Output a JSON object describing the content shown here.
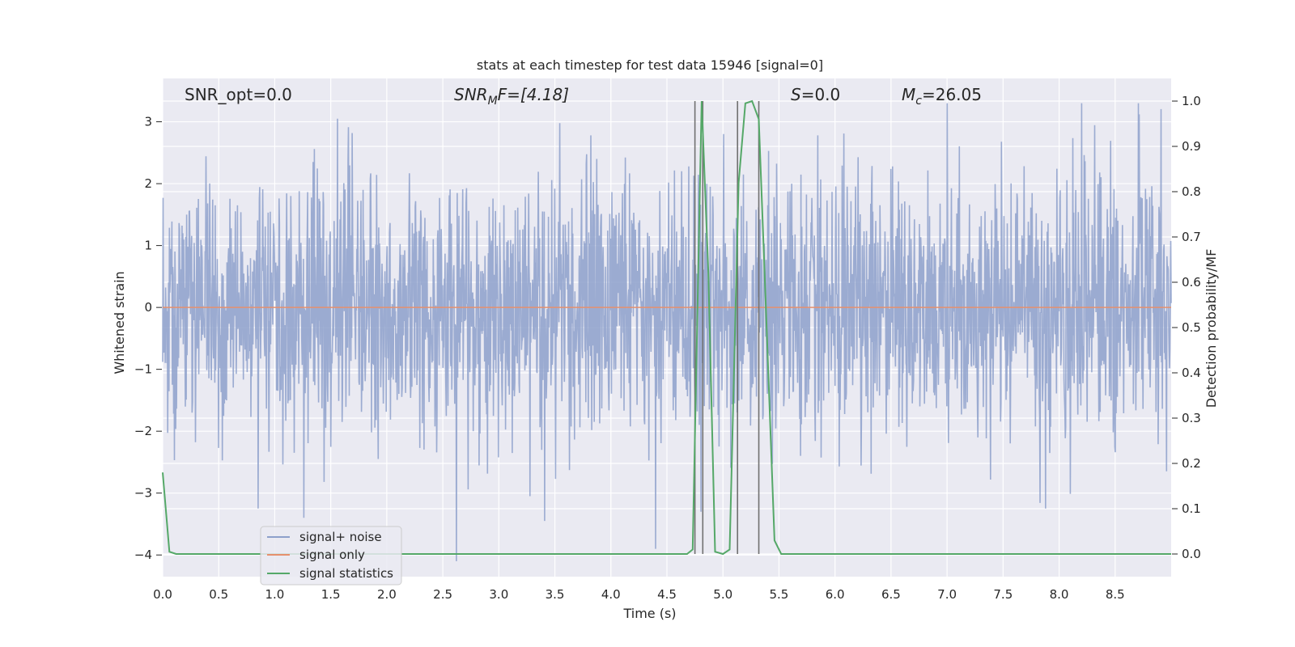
{
  "chart_data": {
    "type": "line",
    "title": "stats at each timestep for test data 15946 [signal=0]",
    "xlabel": "Time (s)",
    "ylabel": "Whitened strain",
    "y2label": "Detection probability/MF",
    "xlim": [
      0.0,
      9.0
    ],
    "ylim": [
      -4.35,
      3.7
    ],
    "y2lim": [
      -0.05,
      1.05
    ],
    "xticks": [
      0.0,
      0.5,
      1.0,
      1.5,
      2.0,
      2.5,
      3.0,
      3.5,
      4.0,
      4.5,
      5.0,
      5.5,
      6.0,
      6.5,
      7.0,
      7.5,
      8.0,
      8.5
    ],
    "xtick_labels": [
      "0.0",
      "0.5",
      "1.0",
      "1.5",
      "2.0",
      "2.5",
      "3.0",
      "3.5",
      "4.0",
      "4.5",
      "5.0",
      "5.5",
      "6.0",
      "6.5",
      "7.0",
      "7.5",
      "8.0",
      "8.5"
    ],
    "yticks": [
      3,
      2,
      1,
      0,
      -1,
      -2,
      -3,
      -4
    ],
    "ytick_labels": [
      "3",
      "2",
      "1",
      "0",
      "−1",
      "−2",
      "−3",
      "−4"
    ],
    "y2ticks": [
      1.0,
      0.9,
      0.8,
      0.7,
      0.6,
      0.5,
      0.4,
      0.3,
      0.2,
      0.1,
      0.0
    ],
    "y2tick_labels": [
      "1.0",
      "0.9",
      "0.8",
      "0.7",
      "0.6",
      "0.5",
      "0.4",
      "0.3",
      "0.2",
      "0.1",
      "0.0"
    ],
    "grid": true,
    "legend_position": "lower-left",
    "annotations": {
      "snr_opt": "SNR_opt=0.0",
      "snr_mf_main": "SNR",
      "snr_mf_sub": "M",
      "snr_mf_rest": "F=[4.18]",
      "s_main": "S",
      "s_rest": "=0.0",
      "mc_main": "M",
      "mc_sub": "c",
      "mc_rest": "=26.05"
    },
    "series": [
      {
        "name": "signal+ noise",
        "color": "#8da0cb",
        "style": "dense noise, approx. Gaussian, sigma ~1, range about -3.4 to 3.4",
        "noise_std": 1.0,
        "extremes": [
          {
            "x": 0.85,
            "y": -3.25
          },
          {
            "x": 1.26,
            "y": -3.4
          },
          {
            "x": 1.56,
            "y": 3.05
          },
          {
            "x": 2.62,
            "y": -4.1
          },
          {
            "x": 3.41,
            "y": -3.45
          },
          {
            "x": 4.4,
            "y": -3.9
          },
          {
            "x": 7.0,
            "y": 3.3
          },
          {
            "x": 7.88,
            "y": -3.25
          },
          {
            "x": 8.2,
            "y": 3.3
          }
        ]
      },
      {
        "name": "signal only",
        "color": "#e5906d",
        "x": [
          0.0,
          9.0
        ],
        "y": [
          0.0,
          0.0
        ]
      },
      {
        "name": "signal statistics",
        "color": "#55a868",
        "axis": "right",
        "x": [
          0.0,
          0.06,
          0.12,
          4.68,
          4.73,
          4.81,
          4.87,
          4.93,
          5.0,
          5.06,
          5.14,
          5.2,
          5.26,
          5.32,
          5.39,
          5.46,
          5.52,
          5.58,
          9.0
        ],
        "y": [
          0.18,
          0.005,
          0.0,
          0.0,
          0.01,
          1.0,
          0.62,
          0.005,
          0.0,
          0.01,
          0.82,
          0.995,
          1.0,
          0.96,
          0.5,
          0.03,
          0.0,
          0.0,
          0.0
        ]
      }
    ],
    "vertical_lines": {
      "color": "#707070",
      "x": [
        4.75,
        4.82,
        5.13,
        5.32
      ],
      "top": 1.0
    }
  }
}
